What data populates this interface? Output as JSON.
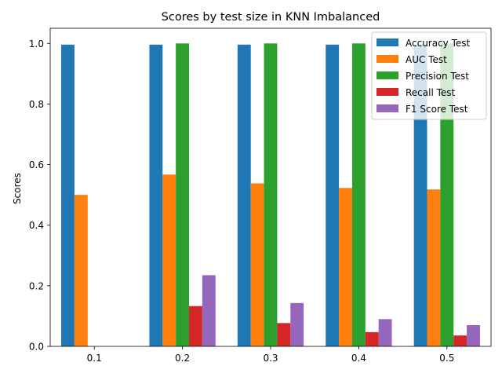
{
  "chart_data": {
    "type": "bar",
    "title": "Scores by test size in KNN Imbalanced",
    "xlabel": "",
    "ylabel": "Scores",
    "categories": [
      "0.1",
      "0.2",
      "0.3",
      "0.4",
      "0.5"
    ],
    "ylim": [
      0,
      1.05
    ],
    "yticks": [
      "0.0",
      "0.2",
      "0.4",
      "0.6",
      "0.8",
      "1.0"
    ],
    "legend_position": "top-right",
    "grid": false,
    "series": [
      {
        "name": "Accuracy Test",
        "color": "#1f77b4",
        "values": [
          0.996,
          0.996,
          0.996,
          0.996,
          0.996
        ]
      },
      {
        "name": "AUC Test",
        "color": "#ff7f0e",
        "values": [
          0.5,
          0.567,
          0.538,
          0.523,
          0.518
        ]
      },
      {
        "name": "Precision Test",
        "color": "#2ca02c",
        "values": [
          0.0,
          1.0,
          1.0,
          1.0,
          1.0
        ]
      },
      {
        "name": "Recall Test",
        "color": "#d62728",
        "values": [
          0.0,
          0.133,
          0.077,
          0.047,
          0.036
        ]
      },
      {
        "name": "F1 Score Test",
        "color": "#9467bd",
        "values": [
          0.0,
          0.235,
          0.143,
          0.09,
          0.07
        ]
      }
    ]
  }
}
